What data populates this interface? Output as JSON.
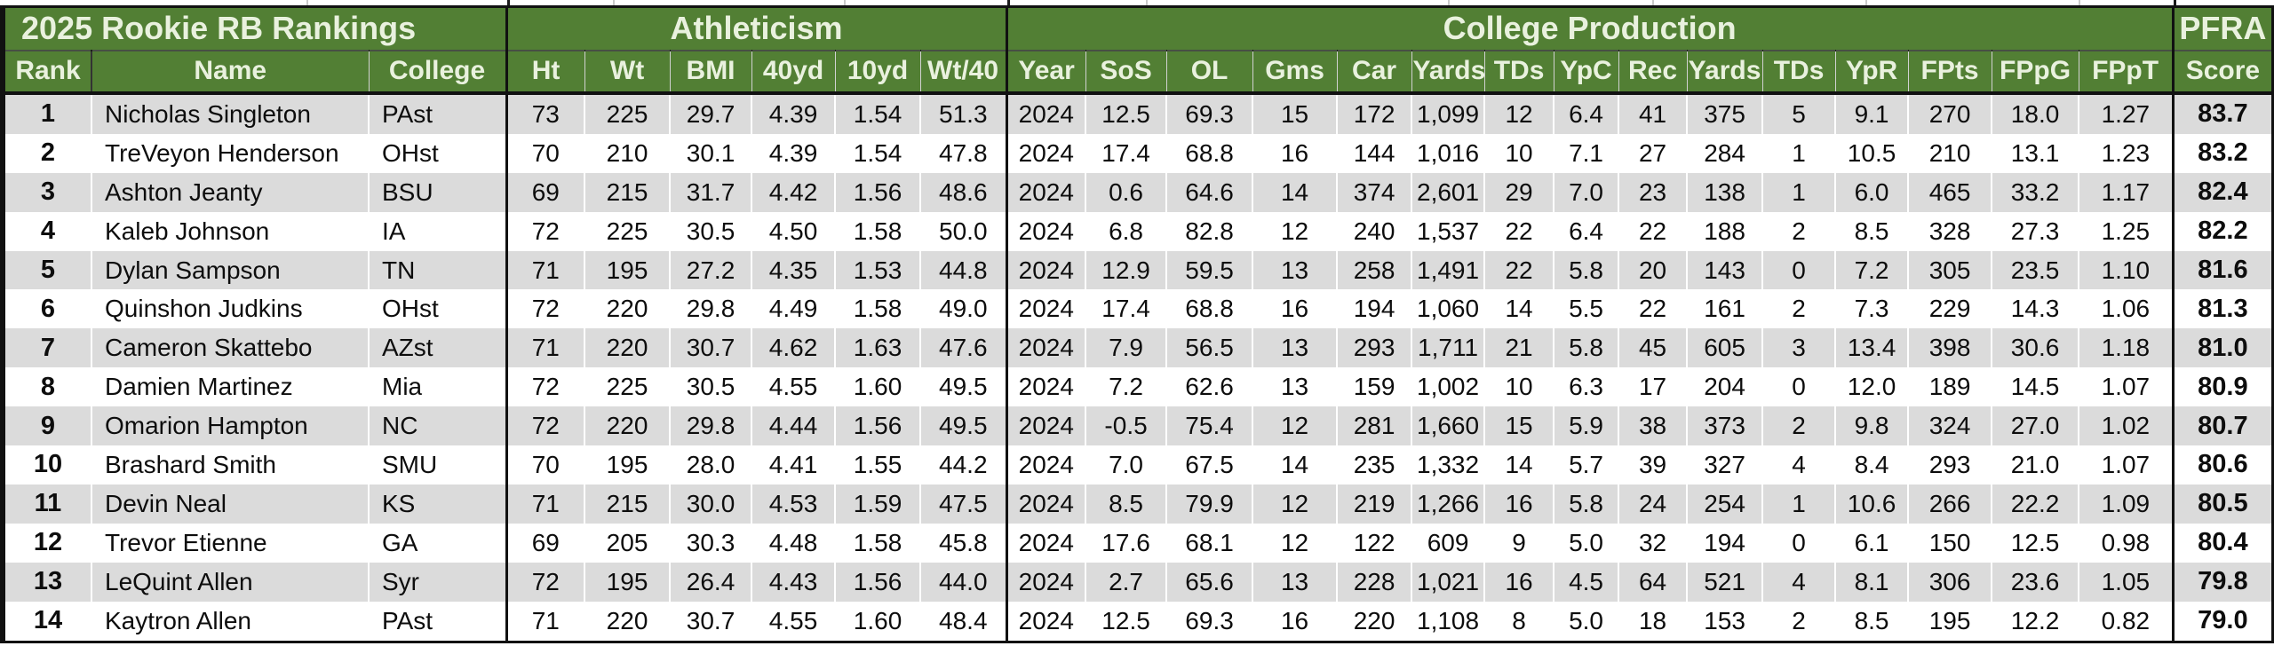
{
  "title": "2025 Rookie RB Rankings",
  "sections": {
    "athleticism": "Athleticism",
    "college_production": "College Production",
    "score_top": "PFRA",
    "score_bottom": "Score"
  },
  "columns": [
    "Rank",
    "Name",
    "College",
    "Ht",
    "Wt",
    "BMI",
    "40yd",
    "10yd",
    "Wt/40",
    "Year",
    "SoS",
    "OL",
    "Gms",
    "Car",
    "Yards",
    "TDs",
    "YpC",
    "Rec",
    "Yards",
    "TDs",
    "YpR",
    "FPts",
    "FPpG",
    "FPpT",
    "Score"
  ],
  "colors": {
    "header_green": "#527f34",
    "header_text": "#e9f1de",
    "stripe_gray": "#dbdbdb",
    "row_white": "#ffffff",
    "border_black": "#111111"
  },
  "rows": [
    [
      "1",
      "Nicholas Singleton",
      "PAst",
      "73",
      "225",
      "29.7",
      "4.39",
      "1.54",
      "51.3",
      "2024",
      "12.5",
      "69.3",
      "15",
      "172",
      "1,099",
      "12",
      "6.4",
      "41",
      "375",
      "5",
      "9.1",
      "270",
      "18.0",
      "1.27",
      "83.7"
    ],
    [
      "2",
      "TreVeyon Henderson",
      "OHst",
      "70",
      "210",
      "30.1",
      "4.39",
      "1.54",
      "47.8",
      "2024",
      "17.4",
      "68.8",
      "16",
      "144",
      "1,016",
      "10",
      "7.1",
      "27",
      "284",
      "1",
      "10.5",
      "210",
      "13.1",
      "1.23",
      "83.2"
    ],
    [
      "3",
      "Ashton Jeanty",
      "BSU",
      "69",
      "215",
      "31.7",
      "4.42",
      "1.56",
      "48.6",
      "2024",
      "0.6",
      "64.6",
      "14",
      "374",
      "2,601",
      "29",
      "7.0",
      "23",
      "138",
      "1",
      "6.0",
      "465",
      "33.2",
      "1.17",
      "82.4"
    ],
    [
      "4",
      "Kaleb Johnson",
      "IA",
      "72",
      "225",
      "30.5",
      "4.50",
      "1.58",
      "50.0",
      "2024",
      "6.8",
      "82.8",
      "12",
      "240",
      "1,537",
      "22",
      "6.4",
      "22",
      "188",
      "2",
      "8.5",
      "328",
      "27.3",
      "1.25",
      "82.2"
    ],
    [
      "5",
      "Dylan Sampson",
      "TN",
      "71",
      "195",
      "27.2",
      "4.35",
      "1.53",
      "44.8",
      "2024",
      "12.9",
      "59.5",
      "13",
      "258",
      "1,491",
      "22",
      "5.8",
      "20",
      "143",
      "0",
      "7.2",
      "305",
      "23.5",
      "1.10",
      "81.6"
    ],
    [
      "6",
      "Quinshon Judkins",
      "OHst",
      "72",
      "220",
      "29.8",
      "4.49",
      "1.58",
      "49.0",
      "2024",
      "17.4",
      "68.8",
      "16",
      "194",
      "1,060",
      "14",
      "5.5",
      "22",
      "161",
      "2",
      "7.3",
      "229",
      "14.3",
      "1.06",
      "81.3"
    ],
    [
      "7",
      "Cameron Skattebo",
      "AZst",
      "71",
      "220",
      "30.7",
      "4.62",
      "1.63",
      "47.6",
      "2024",
      "7.9",
      "56.5",
      "13",
      "293",
      "1,711",
      "21",
      "5.8",
      "45",
      "605",
      "3",
      "13.4",
      "398",
      "30.6",
      "1.18",
      "81.0"
    ],
    [
      "8",
      "Damien Martinez",
      "Mia",
      "72",
      "225",
      "30.5",
      "4.55",
      "1.60",
      "49.5",
      "2024",
      "7.2",
      "62.6",
      "13",
      "159",
      "1,002",
      "10",
      "6.3",
      "17",
      "204",
      "0",
      "12.0",
      "189",
      "14.5",
      "1.07",
      "80.9"
    ],
    [
      "9",
      "Omarion Hampton",
      "NC",
      "72",
      "220",
      "29.8",
      "4.44",
      "1.56",
      "49.5",
      "2024",
      "-0.5",
      "75.4",
      "12",
      "281",
      "1,660",
      "15",
      "5.9",
      "38",
      "373",
      "2",
      "9.8",
      "324",
      "27.0",
      "1.02",
      "80.7"
    ],
    [
      "10",
      "Brashard Smith",
      "SMU",
      "70",
      "195",
      "28.0",
      "4.41",
      "1.55",
      "44.2",
      "2024",
      "7.0",
      "67.5",
      "14",
      "235",
      "1,332",
      "14",
      "5.7",
      "39",
      "327",
      "4",
      "8.4",
      "293",
      "21.0",
      "1.07",
      "80.6"
    ],
    [
      "11",
      "Devin Neal",
      "KS",
      "71",
      "215",
      "30.0",
      "4.53",
      "1.59",
      "47.5",
      "2024",
      "8.5",
      "79.9",
      "12",
      "219",
      "1,266",
      "16",
      "5.8",
      "24",
      "254",
      "1",
      "10.6",
      "266",
      "22.2",
      "1.09",
      "80.5"
    ],
    [
      "12",
      "Trevor Etienne",
      "GA",
      "69",
      "205",
      "30.3",
      "4.48",
      "1.58",
      "45.8",
      "2024",
      "17.6",
      "68.1",
      "12",
      "122",
      "609",
      "9",
      "5.0",
      "32",
      "194",
      "0",
      "6.1",
      "150",
      "12.5",
      "0.98",
      "80.4"
    ],
    [
      "13",
      "LeQuint Allen",
      "Syr",
      "72",
      "195",
      "26.4",
      "4.43",
      "1.56",
      "44.0",
      "2024",
      "2.7",
      "65.6",
      "13",
      "228",
      "1,021",
      "16",
      "4.5",
      "64",
      "521",
      "4",
      "8.1",
      "306",
      "23.6",
      "1.05",
      "79.8"
    ],
    [
      "14",
      "Kaytron Allen",
      "PAst",
      "71",
      "220",
      "30.7",
      "4.55",
      "1.60",
      "48.4",
      "2024",
      "12.5",
      "69.3",
      "16",
      "220",
      "1,108",
      "8",
      "5.0",
      "18",
      "153",
      "2",
      "8.5",
      "195",
      "12.2",
      "0.82",
      "79.0"
    ]
  ]
}
